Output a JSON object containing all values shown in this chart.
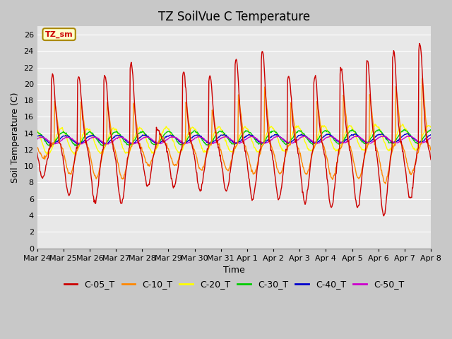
{
  "title": "TZ SoilVue C Temperature",
  "xlabel": "Time",
  "ylabel": "Soil Temperature (C)",
  "ylim": [
    0,
    27
  ],
  "yticks": [
    0,
    2,
    4,
    6,
    8,
    10,
    12,
    14,
    16,
    18,
    20,
    22,
    24,
    26
  ],
  "legend_items": [
    "C-05_T",
    "C-10_T",
    "C-20_T",
    "C-30_T",
    "C-40_T",
    "C-50_T"
  ],
  "legend_colors": [
    "#cc0000",
    "#ff8800",
    "#ffff00",
    "#00cc00",
    "#0000cc",
    "#cc00cc"
  ],
  "annotation_text": "TZ_sm",
  "annotation_bg": "#ffffcc",
  "annotation_border": "#aa8800",
  "x_tick_labels": [
    "Mar 24",
    "Mar 25",
    "Mar 26",
    "Mar 27",
    "Mar 28",
    "Mar 29",
    "Mar 30",
    "Mar 31",
    "Apr 1",
    "Apr 2",
    "Apr 3",
    "Apr 4",
    "Apr 5",
    "Apr 6",
    "Apr 7",
    "Apr 8"
  ],
  "title_fontsize": 12,
  "tick_fontsize": 8,
  "label_fontsize": 9,
  "legend_fontsize": 9,
  "line_width": 1.0,
  "plot_bg_upper": "#e8e8e8",
  "plot_bg_lower": "#d8d8d8",
  "fig_bg": "#c8c8c8"
}
